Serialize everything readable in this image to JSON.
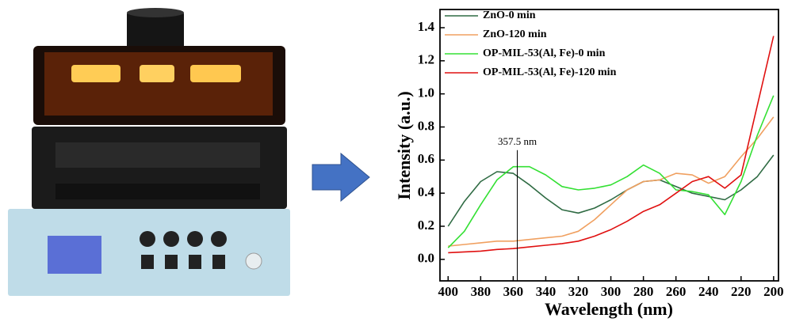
{
  "chart_data": {
    "type": "line",
    "xlabel": "Wavelength (nm)",
    "ylabel": "Intensity (a.u.)",
    "x": [
      400,
      390,
      380,
      370,
      360,
      350,
      340,
      330,
      320,
      310,
      300,
      290,
      280,
      270,
      260,
      250,
      240,
      230,
      220,
      210,
      200
    ],
    "series": [
      {
        "name": "ZnO-0 min",
        "color": "#2f6b43",
        "values": [
          0.2,
          0.35,
          0.47,
          0.53,
          0.52,
          0.45,
          0.37,
          0.3,
          0.28,
          0.31,
          0.36,
          0.42,
          0.47,
          0.48,
          0.44,
          0.4,
          0.38,
          0.36,
          0.42,
          0.5,
          0.63
        ]
      },
      {
        "name": "ZnO-120 min",
        "color": "#f0a060",
        "values": [
          0.08,
          0.09,
          0.1,
          0.11,
          0.11,
          0.12,
          0.13,
          0.14,
          0.17,
          0.24,
          0.33,
          0.42,
          0.47,
          0.48,
          0.52,
          0.51,
          0.46,
          0.5,
          0.62,
          0.73,
          0.86
        ]
      },
      {
        "name": "OP-MIL-53(Al, Fe)-0 min",
        "color": "#33e033",
        "values": [
          0.07,
          0.17,
          0.33,
          0.48,
          0.56,
          0.56,
          0.51,
          0.44,
          0.42,
          0.43,
          0.45,
          0.5,
          0.57,
          0.52,
          0.42,
          0.41,
          0.39,
          0.27,
          0.47,
          0.75,
          0.99
        ]
      },
      {
        "name": "OP-MIL-53(Al, Fe)-120 min",
        "color": "#e01010",
        "values": [
          0.04,
          0.045,
          0.05,
          0.06,
          0.065,
          0.075,
          0.085,
          0.095,
          0.11,
          0.14,
          0.18,
          0.23,
          0.29,
          0.33,
          0.4,
          0.47,
          0.5,
          0.43,
          0.51,
          0.93,
          1.35
        ]
      }
    ],
    "xlim": [
      405,
      197
    ],
    "ylim": [
      -0.13,
      1.51
    ],
    "xticks": [
      400,
      380,
      360,
      340,
      320,
      300,
      280,
      260,
      240,
      220,
      200
    ],
    "yticks": [
      {
        "value": 0,
        "label": "0.0"
      },
      0.2,
      0.4,
      0.6,
      0.8,
      {
        "value": 1,
        "label": "1.0"
      },
      1.2,
      1.4
    ],
    "annotation": {
      "text": "357.5 nm",
      "x": 357.5,
      "y": 0.66
    },
    "legend": "upper left"
  }
}
